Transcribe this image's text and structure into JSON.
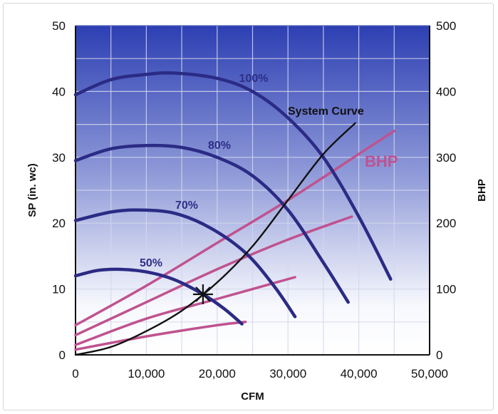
{
  "chart_data": {
    "type": "line",
    "title": "",
    "xlabel": "CFM",
    "ylabel": "SP (in. wc)",
    "y2label": "BHP",
    "xlim": [
      0,
      50000
    ],
    "ylim": [
      0,
      50
    ],
    "y2lim": [
      0,
      500
    ],
    "grid": true,
    "x_ticks": [
      "0",
      "10,000",
      "20,000",
      "30,000",
      "40,000",
      "50,000"
    ],
    "y_ticks": [
      "0",
      "10",
      "20",
      "30",
      "40",
      "50"
    ],
    "y2_ticks": [
      "0",
      "100",
      "200",
      "300",
      "400",
      "500"
    ],
    "colors": {
      "fan_curve": "#2b2b85",
      "bhp_curve": "#c0528f",
      "system_curve": "#111111",
      "bg_top": "#2d3fb3",
      "bg_bottom": "#ffffff"
    },
    "fan_curves": [
      {
        "label": "100%",
        "x": [
          0,
          5000,
          10000,
          14000,
          20000,
          25000,
          30000,
          35000,
          40000,
          44500
        ],
        "y": [
          39.5,
          41.8,
          42.6,
          42.8,
          42,
          40,
          36,
          30,
          21,
          11.5
        ]
      },
      {
        "label": "80%",
        "x": [
          0,
          5000,
          10000,
          15000,
          20000,
          25000,
          30000,
          35000,
          38500
        ],
        "y": [
          29.5,
          31.3,
          31.8,
          31.5,
          30,
          27.2,
          22,
          14,
          8
        ]
      },
      {
        "label": "70%",
        "x": [
          0,
          5000,
          9000,
          14000,
          19000,
          24000,
          28000,
          31000
        ],
        "y": [
          20.4,
          21.7,
          22,
          21.5,
          19.3,
          15.5,
          10.5,
          5.8
        ]
      },
      {
        "label": "50%",
        "x": [
          0,
          3000,
          6000,
          10000,
          14000,
          18000,
          21000,
          23500
        ],
        "y": [
          12,
          12.8,
          13,
          12.6,
          11.4,
          9.2,
          7,
          4.7
        ]
      }
    ],
    "bhp_curves": [
      {
        "x": [
          0,
          10000,
          20000,
          30000,
          40000,
          45000
        ],
        "bhp": [
          45,
          105,
          170,
          235,
          305,
          340
        ]
      },
      {
        "x": [
          0,
          10000,
          20000,
          30000,
          39000
        ],
        "bhp": [
          30,
          80,
          130,
          175,
          210
        ]
      },
      {
        "x": [
          0,
          10000,
          20000,
          31000
        ],
        "bhp": [
          15,
          55,
          85,
          118
        ]
      },
      {
        "x": [
          0,
          10000,
          20000,
          24000
        ],
        "bhp": [
          8,
          28,
          45,
          50
        ]
      }
    ],
    "bhp_label": "BHP",
    "system_curve": {
      "label": "System Curve",
      "x": [
        0,
        5000,
        10000,
        15000,
        20000,
        25000,
        30000,
        35000,
        39500
      ],
      "y": [
        0,
        1.2,
        3.6,
        6.7,
        11,
        16.5,
        23.5,
        30.5,
        35.2
      ]
    },
    "operating_point": {
      "x": 18000,
      "y": 9.2,
      "marker": "star"
    }
  }
}
